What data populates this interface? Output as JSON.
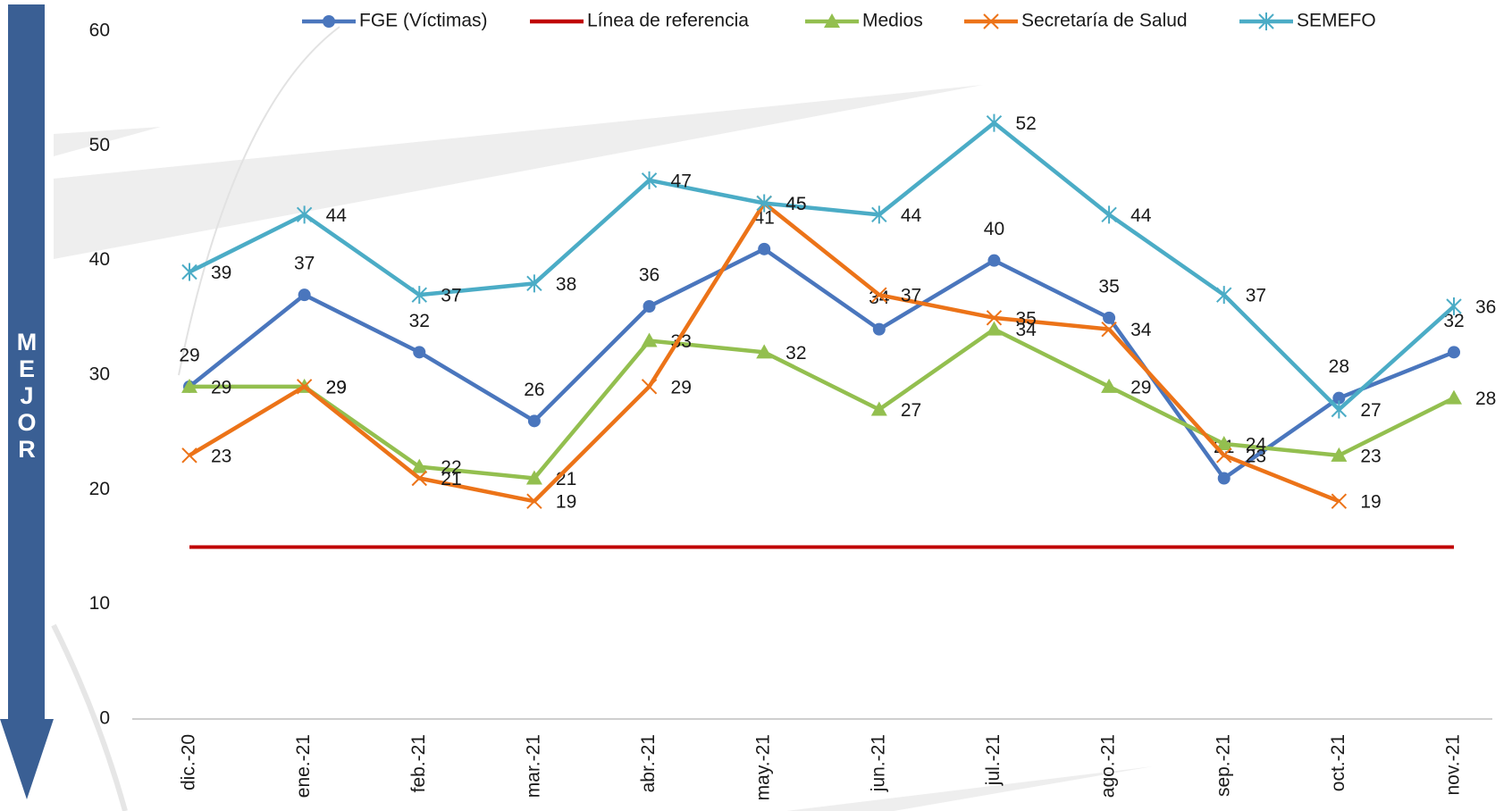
{
  "chart_data": {
    "type": "line",
    "side_label": "MEJOR",
    "categories": [
      "dic.-20",
      "ene.-21",
      "feb.-21",
      "mar.-21",
      "abr.-21",
      "may.-21",
      "jun.-21",
      "jul.-21",
      "ago.-21",
      "sep.-21",
      "oct.-21",
      "nov.-21"
    ],
    "series": [
      {
        "name": "FGE (Víctimas)",
        "color": "#4a76bd",
        "marker": "circle",
        "labels": "above",
        "values": [
          29,
          37,
          32,
          26,
          36,
          41,
          34,
          40,
          35,
          21,
          28,
          32
        ]
      },
      {
        "name": "Línea de referencia",
        "color": "#c00000",
        "marker": "none",
        "labels": "none",
        "values": [
          15,
          15,
          15,
          15,
          15,
          15,
          15,
          15,
          15,
          15,
          15,
          15
        ]
      },
      {
        "name": "Medios",
        "color": "#93bf4f",
        "marker": "triangle",
        "labels": "right",
        "values": [
          29,
          29,
          22,
          21,
          33,
          32,
          27,
          34,
          29,
          24,
          23,
          28
        ]
      },
      {
        "name": "Secretaría de Salud",
        "color": "#ec7318",
        "marker": "x",
        "labels": "right",
        "values": [
          23,
          29,
          21,
          19,
          29,
          45,
          37,
          35,
          34,
          23,
          19,
          null
        ]
      },
      {
        "name": "SEMEFO",
        "color": "#4bacc6",
        "marker": "star",
        "labels": "right",
        "values": [
          39,
          44,
          37,
          38,
          47,
          45,
          44,
          52,
          44,
          37,
          27,
          36
        ]
      }
    ],
    "ylim": [
      0,
      60
    ],
    "yticks": [
      0,
      10,
      20,
      30,
      40,
      50,
      60
    ],
    "grid": false
  }
}
